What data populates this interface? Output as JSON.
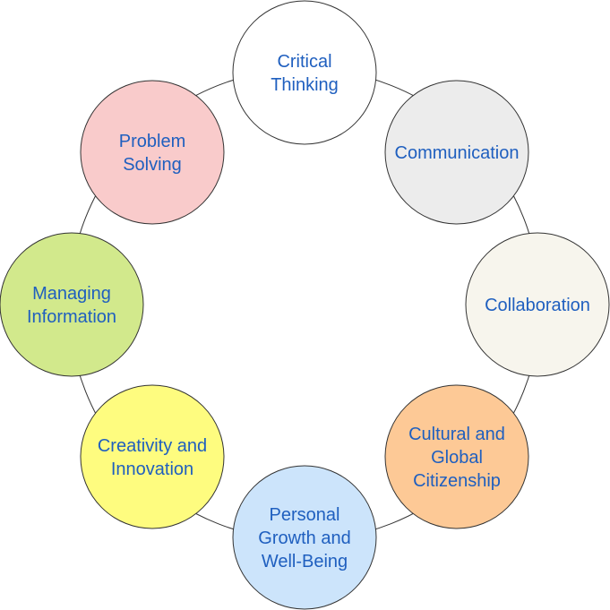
{
  "diagram": {
    "text_color": "#1f5fbf",
    "line_color": "#333333",
    "nodes": [
      {
        "id": "critical-thinking",
        "lines": [
          "Critical",
          "Thinking"
        ],
        "fill": "#ffffff"
      },
      {
        "id": "communication",
        "lines": [
          "Communication"
        ],
        "fill": "#ececec"
      },
      {
        "id": "collaboration",
        "lines": [
          "Collaboration"
        ],
        "fill": "#f7f5ed"
      },
      {
        "id": "cultural-and-global-citizenship",
        "lines": [
          "Cultural and",
          "Global",
          "Citizenship"
        ],
        "fill": "#fdc996"
      },
      {
        "id": "personal-growth-and-well-being",
        "lines": [
          "Personal",
          "Growth and",
          "Well-Being"
        ],
        "fill": "#cce4fb"
      },
      {
        "id": "creativity-and-innovation",
        "lines": [
          "Creativity and",
          "Innovation"
        ],
        "fill": "#fefc7f"
      },
      {
        "id": "managing-information",
        "lines": [
          "Managing",
          "Information"
        ],
        "fill": "#d2e98c"
      },
      {
        "id": "problem-solving",
        "lines": [
          "Problem",
          "Solving"
        ],
        "fill": "#f9cbcb"
      }
    ]
  }
}
